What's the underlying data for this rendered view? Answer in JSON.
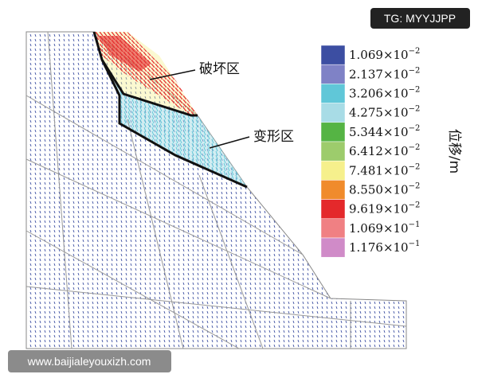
{
  "watermark_top": "TG: MYYJJPP",
  "watermark_bottom": "www.baijialeyouxizh.com",
  "annotations": [
    "破坏区",
    "变形区"
  ],
  "legend": {
    "title": "位移/m",
    "entries": [
      {
        "mantissa": "1.069×10",
        "exponent": "−2",
        "color": "#3c4ea2"
      },
      {
        "mantissa": "2.137×10",
        "exponent": "−2",
        "color": "#7f82c6"
      },
      {
        "mantissa": "3.206×10",
        "exponent": "−2",
        "color": "#60c7d8"
      },
      {
        "mantissa": "4.275×10",
        "exponent": "−2",
        "color": "#a8dce6"
      },
      {
        "mantissa": "5.344×10",
        "exponent": "−2",
        "color": "#55b444"
      },
      {
        "mantissa": "6.412×10",
        "exponent": "−2",
        "color": "#9dcc6c"
      },
      {
        "mantissa": "7.481×10",
        "exponent": "−2",
        "color": "#f6f08c"
      },
      {
        "mantissa": "8.550×10",
        "exponent": "−2",
        "color": "#f08b2c"
      },
      {
        "mantissa": "9.619×10",
        "exponent": "−2",
        "color": "#e4292b"
      },
      {
        "mantissa": "1.069×10",
        "exponent": "−1",
        "color": "#f08083"
      },
      {
        "mantissa": "1.176×10",
        "exponent": "−1",
        "color": "#d08bc8"
      }
    ]
  }
}
